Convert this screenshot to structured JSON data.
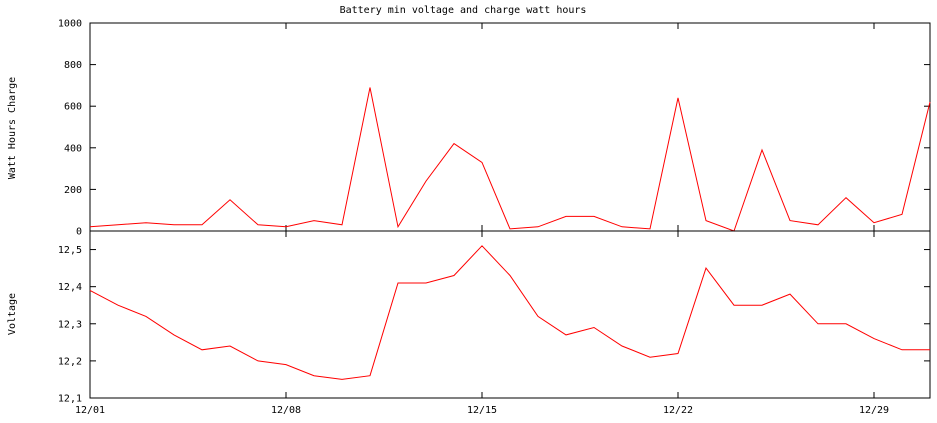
{
  "chart_data": {
    "title": "Battery min voltage and charge watt hours",
    "x_dates": [
      "12/01",
      "12/02",
      "12/03",
      "12/04",
      "12/05",
      "12/06",
      "12/07",
      "12/08",
      "12/09",
      "12/10",
      "12/11",
      "12/12",
      "12/13",
      "12/14",
      "12/15",
      "12/16",
      "12/17",
      "12/18",
      "12/19",
      "12/20",
      "12/21",
      "12/22",
      "12/23",
      "12/24",
      "12/25",
      "12/26",
      "12/27",
      "12/28",
      "12/29",
      "12/30",
      "12/31"
    ],
    "x_tick_labels": [
      "12/01",
      "12/08",
      "12/15",
      "12/22",
      "12/29"
    ],
    "line_color": "#ff0000",
    "panels": [
      {
        "type": "line",
        "ylabel": "Watt Hours Charge",
        "ylim": [
          0,
          1000
        ],
        "y_tick_labels": [
          "0",
          "200",
          "400",
          "600",
          "800",
          "1000"
        ],
        "y_ticks": [
          0,
          200,
          400,
          600,
          800,
          1000
        ],
        "values": [
          20,
          30,
          40,
          30,
          30,
          150,
          30,
          20,
          50,
          30,
          690,
          20,
          240,
          420,
          330,
          10,
          20,
          70,
          70,
          20,
          10,
          640,
          50,
          0,
          390,
          50,
          30,
          160,
          40,
          80,
          620
        ]
      },
      {
        "type": "line",
        "ylabel": "Voltage",
        "ylim": [
          12.1,
          12.55
        ],
        "y_tick_labels": [
          "12,1",
          "12,2",
          "12,3",
          "12,4",
          "12,5"
        ],
        "y_ticks": [
          12.1,
          12.2,
          12.3,
          12.4,
          12.5
        ],
        "values": [
          12.39,
          12.35,
          12.32,
          12.27,
          12.23,
          12.24,
          12.2,
          12.19,
          12.16,
          12.15,
          12.16,
          12.41,
          12.41,
          12.43,
          12.51,
          12.43,
          12.32,
          12.27,
          12.29,
          12.24,
          12.21,
          12.22,
          12.45,
          12.35,
          12.35,
          12.38,
          12.3,
          12.3,
          12.26,
          12.23,
          12.23
        ]
      }
    ]
  }
}
